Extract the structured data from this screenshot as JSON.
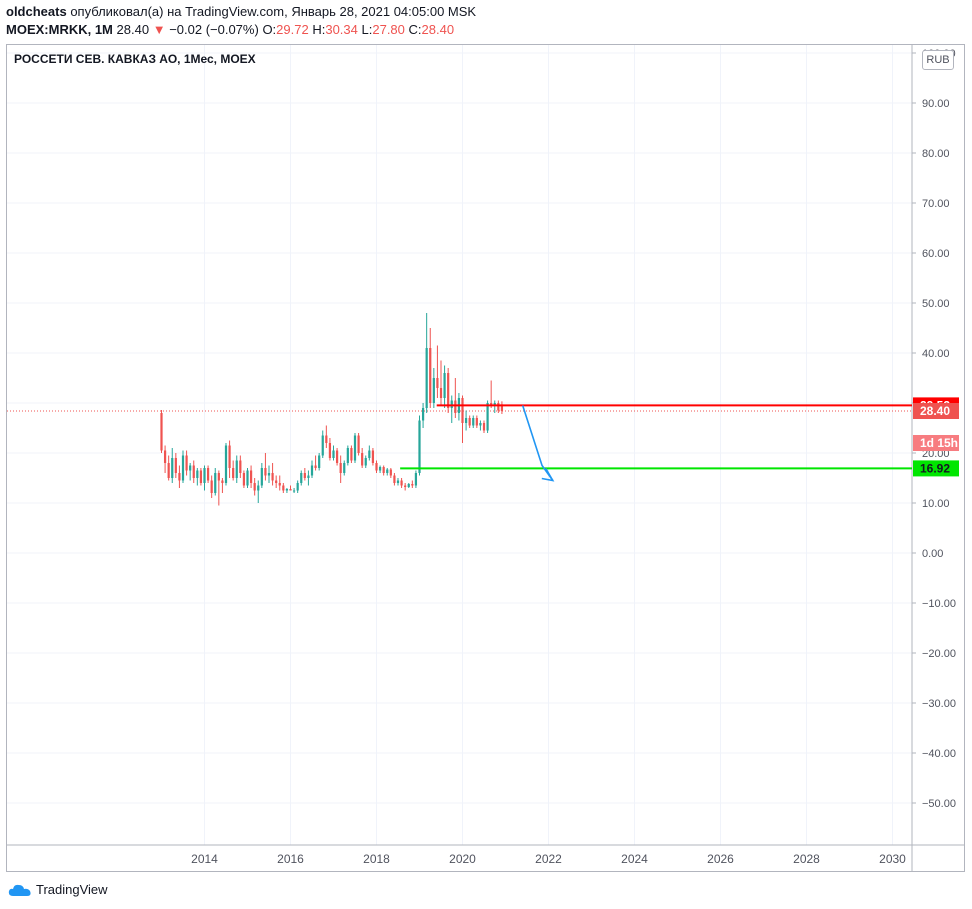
{
  "header": {
    "user": "oldcheats",
    "published_text": "опубликовал(а) на TradingView.com, Январь 28, 2021 04:05:00 MSK",
    "symbol": "MOEX:MRKK, 1M",
    "last": "28.40",
    "change_arrow": "▼",
    "change": "−0.02 (−0.07%)",
    "o_label": "O:",
    "o_value": "29.72",
    "h_label": "H:",
    "h_value": "30.34",
    "l_label": "L:",
    "l_value": "27.80",
    "c_label": "C:",
    "c_value": "28.40"
  },
  "chart_title": "РОССЕТИ СЕВ. КАВКАЗ АО, 1Мес, MOEX",
  "currency_button": "RUB",
  "footer": {
    "brand": "TradingView",
    "logo_icon": "tradingview-cloud-icon"
  },
  "colors": {
    "up": "#26a69a",
    "down": "#ef5350",
    "resistance": "#ff0000",
    "support": "#00e600",
    "arrow": "#2196f3",
    "grid": "#f0f3fa"
  },
  "chart_data": {
    "type": "candlestick",
    "title": "РОССЕТИ СЕВ. КАВКАЗ АО, 1Мес, MOEX",
    "y_ticks": [
      "100.00",
      "90.00",
      "80.00",
      "70.00",
      "60.00",
      "50.00",
      "40.00",
      "30.00",
      "20.00",
      "10.00",
      "0.00",
      "−10.00",
      "−20.00",
      "−30.00",
      "−40.00",
      "−50.00"
    ],
    "y_tick_values": [
      100,
      90,
      80,
      70,
      60,
      50,
      40,
      30,
      20,
      10,
      0,
      -10,
      -20,
      -30,
      -40,
      -50
    ],
    "x_ticks": [
      "2014",
      "2016",
      "2018",
      "2020",
      "2022",
      "2024",
      "2026",
      "2028",
      "2030"
    ],
    "x_tick_values": [
      2014,
      2016,
      2018,
      2020,
      2022,
      2024,
      2026,
      2028,
      2030
    ],
    "ylim": [
      -57.5,
      101.5
    ],
    "xlim": [
      2012.0,
      2030.8
    ],
    "grid": true,
    "series_start": 2013.0,
    "series_step_months": 1,
    "candles": [
      [
        28.0,
        28.6,
        20.0,
        20.5
      ],
      [
        20.5,
        21.5,
        16.0,
        18.0
      ],
      [
        18.0,
        19.5,
        14.5,
        15.0
      ],
      [
        15.0,
        21.0,
        14.0,
        19.0
      ],
      [
        19.0,
        20.0,
        15.0,
        16.0
      ],
      [
        16.0,
        17.5,
        13.0,
        14.5
      ],
      [
        14.5,
        20.5,
        14.0,
        19.5
      ],
      [
        19.5,
        20.5,
        15.5,
        16.5
      ],
      [
        16.5,
        18.0,
        14.5,
        17.5
      ],
      [
        17.5,
        18.5,
        14.0,
        15.0
      ],
      [
        15.0,
        17.0,
        13.5,
        16.5
      ],
      [
        16.5,
        17.0,
        13.5,
        14.0
      ],
      [
        14.0,
        17.5,
        12.5,
        17.0
      ],
      [
        17.0,
        17.5,
        14.0,
        14.5
      ],
      [
        14.5,
        15.5,
        11.0,
        12.0
      ],
      [
        12.0,
        17.0,
        11.5,
        16.0
      ],
      [
        16.0,
        16.5,
        9.5,
        14.5
      ],
      [
        14.5,
        15.0,
        12.0,
        14.0
      ],
      [
        14.0,
        22.0,
        13.5,
        21.5
      ],
      [
        21.5,
        22.5,
        15.0,
        17.0
      ],
      [
        17.0,
        18.5,
        14.5,
        15.0
      ],
      [
        15.0,
        19.5,
        14.0,
        18.5
      ],
      [
        18.5,
        19.5,
        15.0,
        16.0
      ],
      [
        16.0,
        16.5,
        13.0,
        13.5
      ],
      [
        13.5,
        17.0,
        13.0,
        16.5
      ],
      [
        16.5,
        17.5,
        13.0,
        14.0
      ],
      [
        14.0,
        15.0,
        11.5,
        12.5
      ],
      [
        12.5,
        14.5,
        10.0,
        13.5
      ],
      [
        13.5,
        18.0,
        13.0,
        17.0
      ],
      [
        17.0,
        20.0,
        14.5,
        15.5
      ],
      [
        15.5,
        17.5,
        14.0,
        16.0
      ],
      [
        16.0,
        18.0,
        13.5,
        14.5
      ],
      [
        14.5,
        15.5,
        13.0,
        14.0
      ],
      [
        14.0,
        15.5,
        12.5,
        13.5
      ],
      [
        13.5,
        14.0,
        12.0,
        12.5
      ],
      [
        12.5,
        13.0,
        12.0,
        12.8
      ],
      [
        12.8,
        13.5,
        12.5,
        12.5
      ],
      [
        12.5,
        13.0,
        12.0,
        12.5
      ],
      [
        12.5,
        14.5,
        12.0,
        14.0
      ],
      [
        14.0,
        16.5,
        13.5,
        16.0
      ],
      [
        16.0,
        17.0,
        14.5,
        15.0
      ],
      [
        15.0,
        16.5,
        13.5,
        15.5
      ],
      [
        15.5,
        18.5,
        15.0,
        17.5
      ],
      [
        17.5,
        19.5,
        16.5,
        17.0
      ],
      [
        17.0,
        20.0,
        16.5,
        19.5
      ],
      [
        19.5,
        24.5,
        19.0,
        23.5
      ],
      [
        23.5,
        25.5,
        21.0,
        22.0
      ],
      [
        22.0,
        23.0,
        18.5,
        19.0
      ],
      [
        19.0,
        21.5,
        18.5,
        20.5
      ],
      [
        20.5,
        21.0,
        17.5,
        18.0
      ],
      [
        18.0,
        19.5,
        14.0,
        16.0
      ],
      [
        16.0,
        18.5,
        15.5,
        18.0
      ],
      [
        18.0,
        21.5,
        17.5,
        21.0
      ],
      [
        21.0,
        21.5,
        18.0,
        18.5
      ],
      [
        18.5,
        24.0,
        18.0,
        23.5
      ],
      [
        23.5,
        24.0,
        19.5,
        20.0
      ],
      [
        20.0,
        21.0,
        17.0,
        17.5
      ],
      [
        17.5,
        19.5,
        17.0,
        19.0
      ],
      [
        19.0,
        21.5,
        18.5,
        20.5
      ],
      [
        20.5,
        21.0,
        17.5,
        18.0
      ],
      [
        18.0,
        18.5,
        16.0,
        16.5
      ],
      [
        16.5,
        17.5,
        16.0,
        17.2
      ],
      [
        17.2,
        17.5,
        15.5,
        16.0
      ],
      [
        16.0,
        17.0,
        15.5,
        16.7
      ],
      [
        16.7,
        17.0,
        15.0,
        15.5
      ],
      [
        15.5,
        16.0,
        13.5,
        14.0
      ],
      [
        14.0,
        15.0,
        13.5,
        14.5
      ],
      [
        14.5,
        15.0,
        13.0,
        13.5
      ],
      [
        13.5,
        14.0,
        12.5,
        13.2
      ],
      [
        13.2,
        14.0,
        13.0,
        13.8
      ],
      [
        13.8,
        14.5,
        13.0,
        13.5
      ],
      [
        13.5,
        16.5,
        13.0,
        16.0
      ],
      [
        16.0,
        27.5,
        15.5,
        26.5
      ],
      [
        26.5,
        30.0,
        25.0,
        29.0
      ],
      [
        29.0,
        48.0,
        28.0,
        41.0
      ],
      [
        41.0,
        45.0,
        29.0,
        30.0
      ],
      [
        30.0,
        37.0,
        29.0,
        35.0
      ],
      [
        35.0,
        41.5,
        31.0,
        33.0
      ],
      [
        33.0,
        38.5,
        29.5,
        31.0
      ],
      [
        31.0,
        37.5,
        29.0,
        36.0
      ],
      [
        36.0,
        37.0,
        28.0,
        29.0
      ],
      [
        29.0,
        31.5,
        26.0,
        30.5
      ],
      [
        30.5,
        35.0,
        27.0,
        28.0
      ],
      [
        28.0,
        32.0,
        26.5,
        31.0
      ],
      [
        31.0,
        31.5,
        22.0,
        26.0
      ],
      [
        26.0,
        28.5,
        24.5,
        27.0
      ],
      [
        27.0,
        27.5,
        25.0,
        25.5
      ],
      [
        25.5,
        27.5,
        25.0,
        27.0
      ],
      [
        27.0,
        27.5,
        25.0,
        25.5
      ],
      [
        25.5,
        26.5,
        24.5,
        26.0
      ],
      [
        26.0,
        26.5,
        24.0,
        24.5
      ],
      [
        24.5,
        30.5,
        24.0,
        30.0
      ],
      [
        30.0,
        34.5,
        29.0,
        29.5
      ],
      [
        29.5,
        30.5,
        28.0,
        30.0
      ],
      [
        30.0,
        30.5,
        28.0,
        28.5
      ],
      [
        29.72,
        30.34,
        27.8,
        28.4
      ]
    ],
    "lines": {
      "resistance": {
        "label": "29.52",
        "value": 29.52,
        "from_x": 2019.4
      },
      "support": {
        "label": "16.92",
        "value": 16.92,
        "from_x": 2018.55
      },
      "current_price": {
        "label": "28.40",
        "value": 28.4
      },
      "countdown": {
        "label": "1d 15h",
        "value": 22.0
      }
    },
    "projection_arrow": {
      "points": [
        [
          2021.4,
          29.5
        ],
        [
          2021.85,
          17.5
        ],
        [
          2022.1,
          14.5
        ]
      ]
    }
  }
}
